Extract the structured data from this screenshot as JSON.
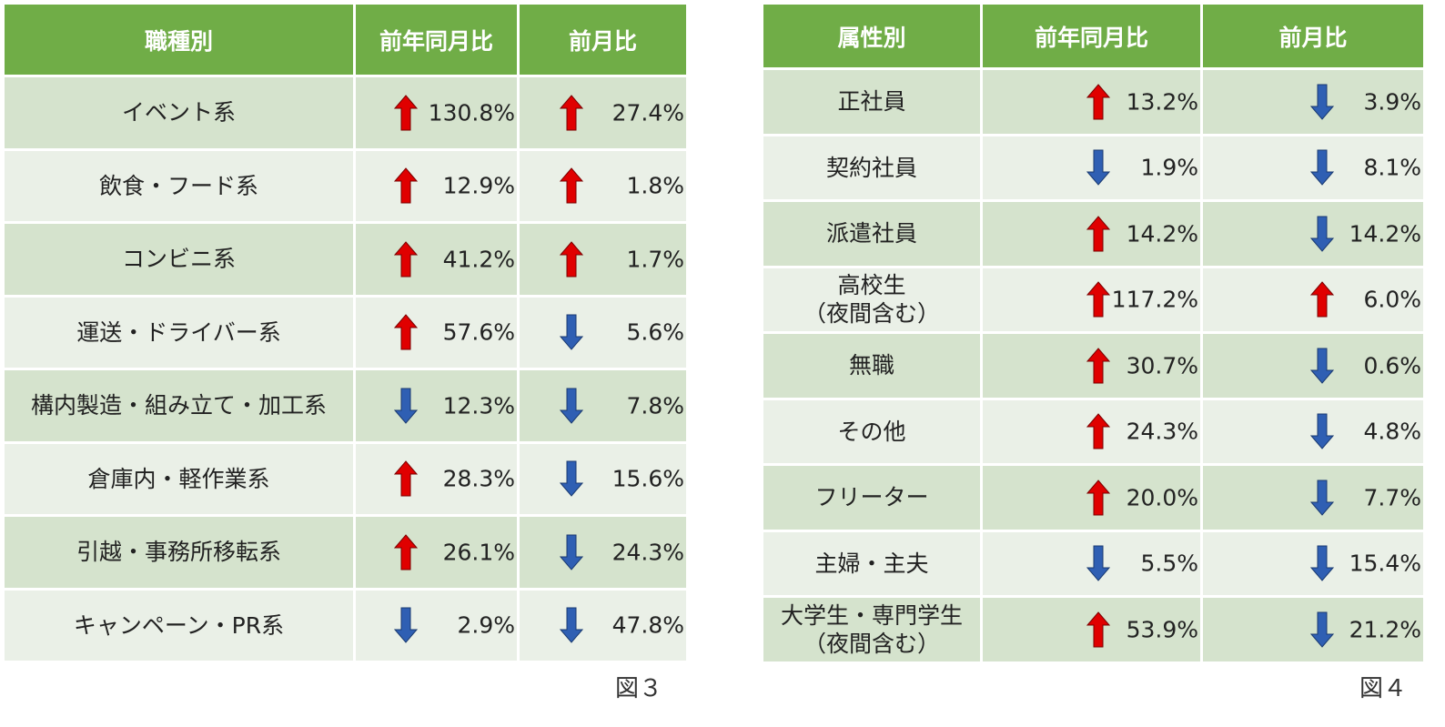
{
  "figure3": {
    "caption": "図３",
    "headers": [
      "職種別",
      "前年同月比",
      "前月比"
    ],
    "rows": [
      {
        "label": [
          "イベント系"
        ],
        "yoy": {
          "dir": "up",
          "value": "130.8%"
        },
        "mom": {
          "dir": "up",
          "value": "27.4%"
        }
      },
      {
        "label": [
          "飲食・フード系"
        ],
        "yoy": {
          "dir": "up",
          "value": "12.9%"
        },
        "mom": {
          "dir": "up",
          "value": "1.8%"
        }
      },
      {
        "label": [
          "コンビニ系"
        ],
        "yoy": {
          "dir": "up",
          "value": "41.2%"
        },
        "mom": {
          "dir": "up",
          "value": "1.7%"
        }
      },
      {
        "label": [
          "運送・ドライバー系"
        ],
        "yoy": {
          "dir": "up",
          "value": "57.6%"
        },
        "mom": {
          "dir": "down",
          "value": "5.6%"
        }
      },
      {
        "label": [
          "構内製造・組み立て・加工系"
        ],
        "yoy": {
          "dir": "down",
          "value": "12.3%"
        },
        "mom": {
          "dir": "down",
          "value": "7.8%"
        }
      },
      {
        "label": [
          "倉庫内・軽作業系"
        ],
        "yoy": {
          "dir": "up",
          "value": "28.3%"
        },
        "mom": {
          "dir": "down",
          "value": "15.6%"
        }
      },
      {
        "label": [
          "引越・事務所移転系"
        ],
        "yoy": {
          "dir": "up",
          "value": "26.1%"
        },
        "mom": {
          "dir": "down",
          "value": "24.3%"
        }
      },
      {
        "label": [
          "キャンペーン・PR系"
        ],
        "yoy": {
          "dir": "down",
          "value": "2.9%"
        },
        "mom": {
          "dir": "down",
          "value": "47.8%"
        }
      }
    ]
  },
  "figure4": {
    "caption": "図４",
    "headers": [
      "属性別",
      "前年同月比",
      "前月比"
    ],
    "rows": [
      {
        "label": [
          "正社員"
        ],
        "yoy": {
          "dir": "up",
          "value": "13.2%"
        },
        "mom": {
          "dir": "down",
          "value": "3.9%"
        }
      },
      {
        "label": [
          "契約社員"
        ],
        "yoy": {
          "dir": "down",
          "value": "1.9%"
        },
        "mom": {
          "dir": "down",
          "value": "8.1%"
        }
      },
      {
        "label": [
          "派遣社員"
        ],
        "yoy": {
          "dir": "up",
          "value": "14.2%"
        },
        "mom": {
          "dir": "down",
          "value": "14.2%"
        }
      },
      {
        "label": [
          "高校生",
          "（夜間含む）"
        ],
        "yoy": {
          "dir": "up",
          "value": "117.2%"
        },
        "mom": {
          "dir": "up",
          "value": "6.0%"
        }
      },
      {
        "label": [
          "無職"
        ],
        "yoy": {
          "dir": "up",
          "value": "30.7%"
        },
        "mom": {
          "dir": "down",
          "value": "0.6%"
        }
      },
      {
        "label": [
          "その他"
        ],
        "yoy": {
          "dir": "up",
          "value": "24.3%"
        },
        "mom": {
          "dir": "down",
          "value": "4.8%"
        }
      },
      {
        "label": [
          "フリーター"
        ],
        "yoy": {
          "dir": "up",
          "value": "20.0%"
        },
        "mom": {
          "dir": "down",
          "value": "7.7%"
        }
      },
      {
        "label": [
          "主婦・主夫"
        ],
        "yoy": {
          "dir": "down",
          "value": "5.5%"
        },
        "mom": {
          "dir": "down",
          "value": "15.4%"
        }
      },
      {
        "label": [
          "大学生・専門学生",
          "（夜間含む）"
        ],
        "yoy": {
          "dir": "up",
          "value": "53.9%"
        },
        "mom": {
          "dir": "down",
          "value": "21.2%"
        }
      }
    ],
    "colors": {
      "up": "#e00000",
      "down": "#2f5fb3"
    }
  }
}
